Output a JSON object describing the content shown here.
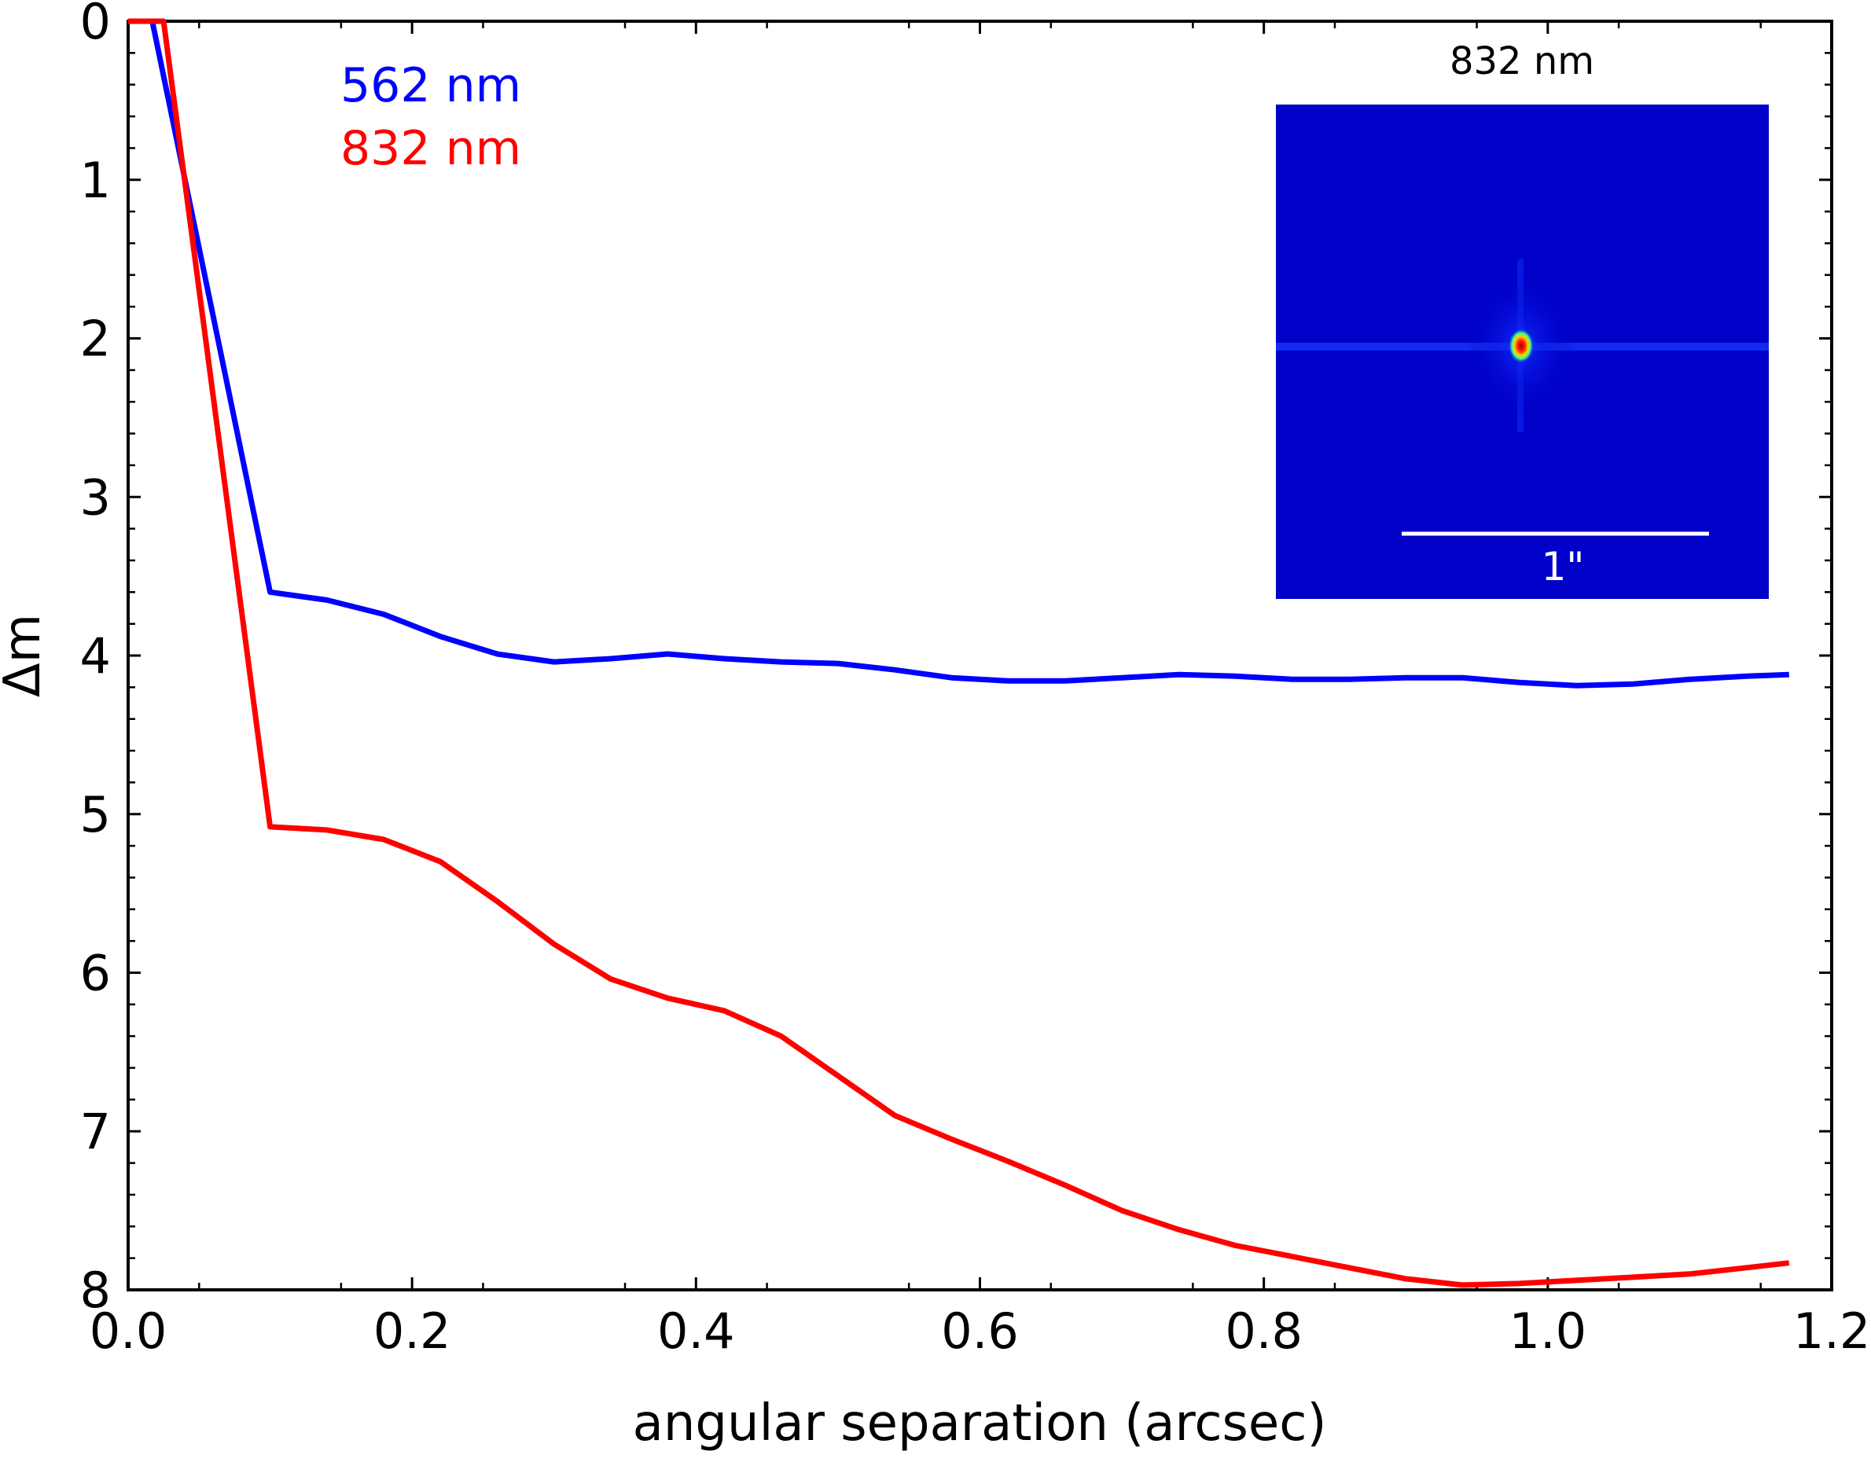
{
  "chart_data": {
    "type": "line",
    "title": "",
    "xlabel": "angular separation (arcsec)",
    "ylabel": "Δm",
    "xlim": [
      0.0,
      1.2
    ],
    "ylim": [
      0,
      8
    ],
    "y_inverted": true,
    "grid": false,
    "legend_placement": "top-left",
    "x_ticks": [
      "0.0",
      "0.2",
      "0.4",
      "0.6",
      "0.8",
      "1.0",
      "1.2"
    ],
    "y_ticks": [
      "0",
      "1",
      "2",
      "3",
      "4",
      "5",
      "6",
      "7",
      "8"
    ],
    "series": [
      {
        "name": "562 nm",
        "color": "#0000ff",
        "x": [
          0.0,
          0.017,
          0.1,
          0.14,
          0.18,
          0.22,
          0.26,
          0.3,
          0.34,
          0.38,
          0.42,
          0.46,
          0.5,
          0.54,
          0.58,
          0.62,
          0.66,
          0.7,
          0.74,
          0.78,
          0.82,
          0.86,
          0.9,
          0.94,
          0.98,
          1.02,
          1.06,
          1.1,
          1.14,
          1.17
        ],
        "y": [
          0.0,
          0.0,
          3.6,
          3.65,
          3.74,
          3.88,
          3.99,
          4.04,
          4.02,
          3.99,
          4.02,
          4.04,
          4.05,
          4.09,
          4.14,
          4.16,
          4.16,
          4.14,
          4.12,
          4.13,
          4.15,
          4.15,
          4.14,
          4.14,
          4.17,
          4.19,
          4.18,
          4.15,
          4.13,
          4.12
        ]
      },
      {
        "name": "832 nm",
        "color": "#ff0000",
        "x": [
          0.0,
          0.025,
          0.1,
          0.14,
          0.18,
          0.22,
          0.26,
          0.3,
          0.34,
          0.38,
          0.42,
          0.46,
          0.5,
          0.54,
          0.58,
          0.62,
          0.66,
          0.7,
          0.74,
          0.78,
          0.82,
          0.86,
          0.9,
          0.94,
          0.98,
          1.02,
          1.06,
          1.1,
          1.14,
          1.17
        ],
        "y": [
          0.0,
          0.0,
          5.08,
          5.1,
          5.16,
          5.3,
          5.55,
          5.82,
          6.04,
          6.16,
          6.24,
          6.4,
          6.65,
          6.9,
          7.05,
          7.19,
          7.34,
          7.5,
          7.62,
          7.72,
          7.79,
          7.86,
          7.93,
          7.97,
          7.96,
          7.94,
          7.92,
          7.9,
          7.86,
          7.83
        ]
      }
    ],
    "inset": {
      "title": "832 nm",
      "scale_bar_label": "1\"",
      "background_color": "#0000c8",
      "peak_color": "#ff0000"
    }
  }
}
